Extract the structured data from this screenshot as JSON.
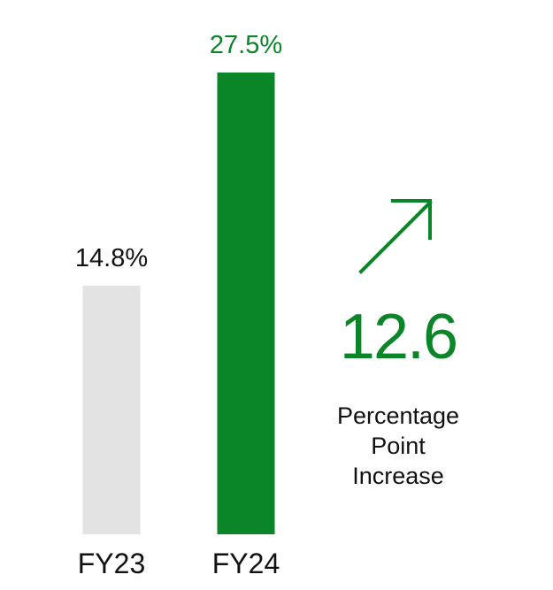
{
  "chart_data": {
    "type": "bar",
    "categories": [
      "FY23",
      "FY24"
    ],
    "values": [
      14.8,
      27.5
    ],
    "data_labels": [
      "14.8%",
      "27.5%"
    ],
    "bar_colors": [
      "#e3e3e3",
      "#0a8528"
    ],
    "label_colors": [
      "#111111",
      "#0a8528"
    ],
    "ylim": [
      0,
      27.5
    ],
    "grid": false,
    "title": "",
    "xlabel": "",
    "ylabel": ""
  },
  "callout": {
    "value": "12.6",
    "caption_lines": [
      "Percentage",
      "Point",
      "Increase"
    ],
    "icon": "arrow-up-right-icon",
    "color": "#0a8528"
  }
}
